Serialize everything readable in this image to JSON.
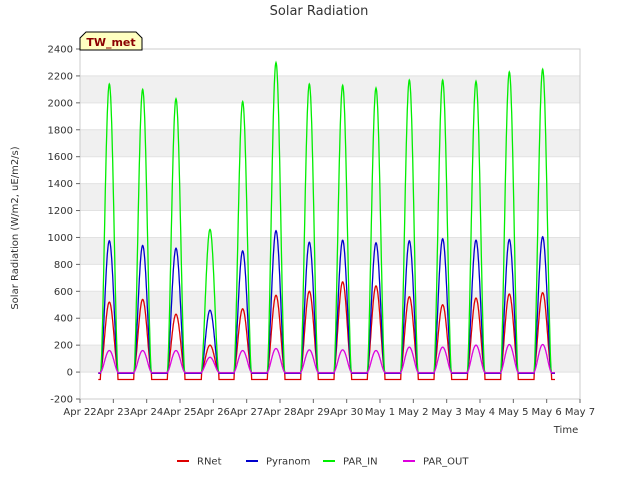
{
  "chart_data": {
    "type": "line",
    "title": "Solar Radiation",
    "xlabel": "Time",
    "ylabel": "Solar Radiation (W/m2, uE/m2/s)",
    "tag": "TW_met",
    "ylim": [
      -200,
      2400
    ],
    "yticks": [
      -200,
      0,
      200,
      400,
      600,
      800,
      1000,
      1200,
      1400,
      1600,
      1800,
      2000,
      2200,
      2400
    ],
    "xlim": [
      0,
      15
    ],
    "xticks": [
      {
        "x": 0,
        "label": "Apr 22"
      },
      {
        "x": 1,
        "label": "Apr 23"
      },
      {
        "x": 2,
        "label": "Apr 24"
      },
      {
        "x": 3,
        "label": "Apr 25"
      },
      {
        "x": 4,
        "label": "Apr 26"
      },
      {
        "x": 5,
        "label": "Apr 27"
      },
      {
        "x": 6,
        "label": "Apr 28"
      },
      {
        "x": 7,
        "label": "Apr 29"
      },
      {
        "x": 8,
        "label": "Apr 30"
      },
      {
        "x": 9,
        "label": "May 1"
      },
      {
        "x": 10,
        "label": "May 2"
      },
      {
        "x": 11,
        "label": "May 3"
      },
      {
        "x": 12,
        "label": "May 4"
      },
      {
        "x": 13,
        "label": "May 5"
      },
      {
        "x": 14,
        "label": "May 6"
      },
      {
        "x": 15,
        "label": "May 7"
      }
    ],
    "grid": "horizontal bands",
    "legend_position": "bottom",
    "series": [
      {
        "name": "RNet",
        "color": "#dd0000",
        "night": -55,
        "peaks": [
          {
            "x": 0.88,
            "y": 520
          },
          {
            "x": 1.88,
            "y": 540
          },
          {
            "x": 2.88,
            "y": 430
          },
          {
            "x": 3.9,
            "y": 200
          },
          {
            "x": 4.88,
            "y": 470
          },
          {
            "x": 5.88,
            "y": 570
          },
          {
            "x": 6.88,
            "y": 600
          },
          {
            "x": 7.88,
            "y": 670
          },
          {
            "x": 8.88,
            "y": 640
          },
          {
            "x": 9.88,
            "y": 560
          },
          {
            "x": 10.88,
            "y": 500
          },
          {
            "x": 11.88,
            "y": 550
          },
          {
            "x": 12.88,
            "y": 580
          },
          {
            "x": 13.88,
            "y": 590
          }
        ]
      },
      {
        "name": "Pyranom",
        "color": "#0000cc",
        "night": -10,
        "peaks": [
          {
            "x": 0.88,
            "y": 975
          },
          {
            "x": 1.88,
            "y": 940
          },
          {
            "x": 2.88,
            "y": 920
          },
          {
            "x": 3.9,
            "y": 460
          },
          {
            "x": 4.88,
            "y": 900
          },
          {
            "x": 5.88,
            "y": 1050
          },
          {
            "x": 6.88,
            "y": 965
          },
          {
            "x": 7.88,
            "y": 980
          },
          {
            "x": 8.88,
            "y": 960
          },
          {
            "x": 9.88,
            "y": 975
          },
          {
            "x": 10.88,
            "y": 990
          },
          {
            "x": 11.88,
            "y": 980
          },
          {
            "x": 12.88,
            "y": 985
          },
          {
            "x": 13.88,
            "y": 1005
          }
        ]
      },
      {
        "name": "PAR_IN",
        "color": "#00ee00",
        "night": -5,
        "peaks": [
          {
            "x": 0.88,
            "y": 2140
          },
          {
            "x": 1.88,
            "y": 2100
          },
          {
            "x": 2.88,
            "y": 2030
          },
          {
            "x": 3.9,
            "y": 1060
          },
          {
            "x": 4.88,
            "y": 2010
          },
          {
            "x": 5.88,
            "y": 2300
          },
          {
            "x": 6.88,
            "y": 2140
          },
          {
            "x": 7.88,
            "y": 2130
          },
          {
            "x": 8.88,
            "y": 2110
          },
          {
            "x": 9.88,
            "y": 2170
          },
          {
            "x": 10.88,
            "y": 2170
          },
          {
            "x": 11.88,
            "y": 2160
          },
          {
            "x": 12.88,
            "y": 2230
          },
          {
            "x": 13.88,
            "y": 2250
          }
        ]
      },
      {
        "name": "PAR_OUT",
        "color": "#dd00dd",
        "night": -5,
        "peaks": [
          {
            "x": 0.88,
            "y": 160
          },
          {
            "x": 1.88,
            "y": 160
          },
          {
            "x": 2.88,
            "y": 160
          },
          {
            "x": 3.9,
            "y": 110
          },
          {
            "x": 4.88,
            "y": 160
          },
          {
            "x": 5.88,
            "y": 175
          },
          {
            "x": 6.88,
            "y": 165
          },
          {
            "x": 7.88,
            "y": 165
          },
          {
            "x": 8.88,
            "y": 160
          },
          {
            "x": 9.88,
            "y": 185
          },
          {
            "x": 10.88,
            "y": 185
          },
          {
            "x": 11.88,
            "y": 200
          },
          {
            "x": 12.88,
            "y": 205
          },
          {
            "x": 13.88,
            "y": 205
          }
        ]
      }
    ]
  }
}
